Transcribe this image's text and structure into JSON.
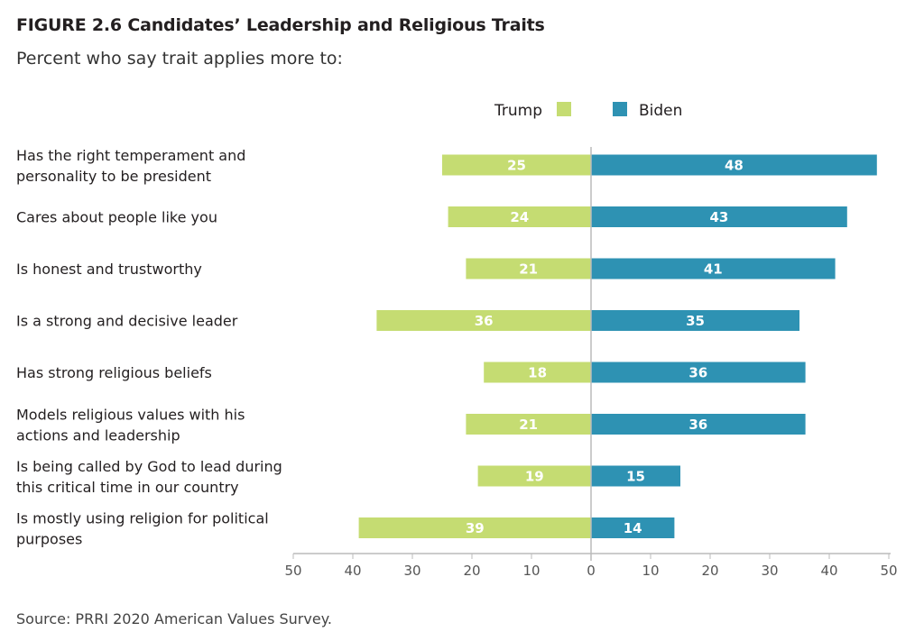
{
  "title": "FIGURE 2.6  Candidates’ Leadership and Religious Traits",
  "subtitle": "Percent who say trait applies more to:",
  "source": "Source: PRRI 2020 American Values Survey.",
  "colors": {
    "trump": "#c5dc72",
    "biden": "#2e92b3",
    "axis": "#bbbbbb"
  },
  "chart_data": {
    "type": "bar",
    "orientation": "horizontal-diverging",
    "categories": [
      [
        "Has the right temperament and",
        "personality to be president"
      ],
      [
        "Cares about people like you"
      ],
      [
        "Is honest and trustworthy"
      ],
      [
        "Is a strong and decisive leader"
      ],
      [
        "Has strong religious beliefs"
      ],
      [
        "Models religious values with his",
        "actions and leadership"
      ],
      [
        "Is being called by God to lead during",
        "this critical time in our country"
      ],
      [
        "Is mostly using religion for political",
        "purposes"
      ]
    ],
    "series": [
      {
        "name": "Trump",
        "values": [
          25,
          24,
          21,
          36,
          18,
          21,
          19,
          39
        ]
      },
      {
        "name": "Biden",
        "values": [
          48,
          43,
          41,
          35,
          36,
          36,
          15,
          14
        ]
      }
    ],
    "xlim": [
      -50,
      50
    ],
    "xticks": [
      -50,
      -40,
      -30,
      -20,
      -10,
      0,
      10,
      20,
      30,
      40,
      50
    ],
    "xtick_labels": [
      "50",
      "40",
      "30",
      "20",
      "10",
      "0",
      "10",
      "20",
      "30",
      "40",
      "50"
    ],
    "legend": {
      "position": "top-center",
      "entries": [
        "Trump",
        "Biden"
      ]
    },
    "grid": false
  }
}
